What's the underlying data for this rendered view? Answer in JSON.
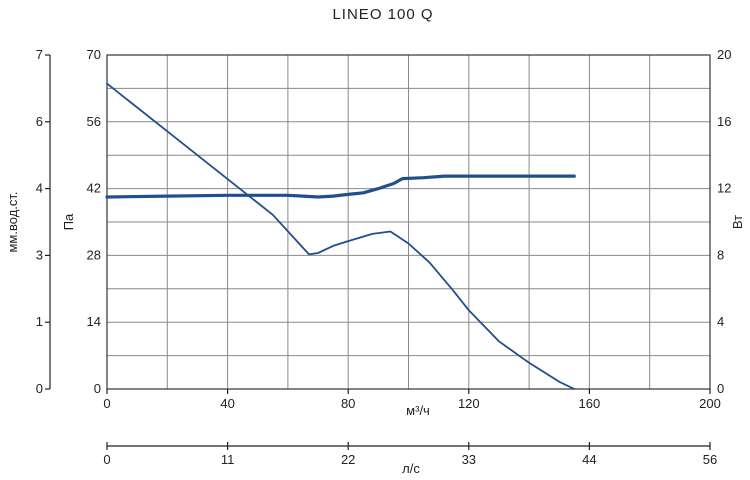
{
  "chart_data": {
    "type": "line",
    "title": "LINEO 100 Q",
    "xlabel": "м³/ч",
    "x2label": "л/с",
    "ylabel_left_outer": "мм.вод.ст.",
    "ylabel_left_inner": "Па",
    "ylabel_right": "Вт",
    "xlim": [
      0,
      200
    ],
    "x_ticks": [
      "0",
      "40",
      "80",
      "120",
      "160",
      "200"
    ],
    "x2lim": [
      0,
      56
    ],
    "x2_ticks": [
      "0",
      "11",
      "22",
      "33",
      "44",
      "56"
    ],
    "ylim_pa": [
      0,
      70
    ],
    "y_pa_ticks": [
      "0",
      "14",
      "28",
      "42",
      "56",
      "70"
    ],
    "y_mm_ticks": [
      "0",
      "1",
      "3",
      "4",
      "6",
      "7"
    ],
    "ylim_w": [
      0,
      20
    ],
    "y_w_ticks": [
      "0",
      "4",
      "8",
      "12",
      "16",
      "20"
    ],
    "grid": true,
    "colors": {
      "pressure": "#1f4f8f",
      "power": "#1f4f8f"
    },
    "series": [
      {
        "key": "pressure",
        "axis": "pa",
        "x": [
          0,
          20,
          40,
          55,
          63,
          67,
          70,
          75,
          80,
          88,
          94,
          100,
          107,
          115,
          120,
          130,
          140,
          150,
          155
        ],
        "y": [
          64,
          54,
          44,
          36.5,
          31,
          28.2,
          28.5,
          30,
          31,
          32.5,
          33,
          30.5,
          26.5,
          20.5,
          16.5,
          10,
          5.5,
          1.5,
          0
        ]
      },
      {
        "key": "power",
        "axis": "w",
        "x": [
          0,
          20,
          40,
          60,
          65,
          70,
          75,
          80,
          85,
          90,
          95,
          98,
          105,
          112,
          120,
          140,
          155
        ],
        "y": [
          11.5,
          11.55,
          11.6,
          11.6,
          11.55,
          11.5,
          11.55,
          11.65,
          11.75,
          12.0,
          12.3,
          12.6,
          12.65,
          12.75,
          12.75,
          12.75,
          12.75
        ]
      }
    ]
  }
}
